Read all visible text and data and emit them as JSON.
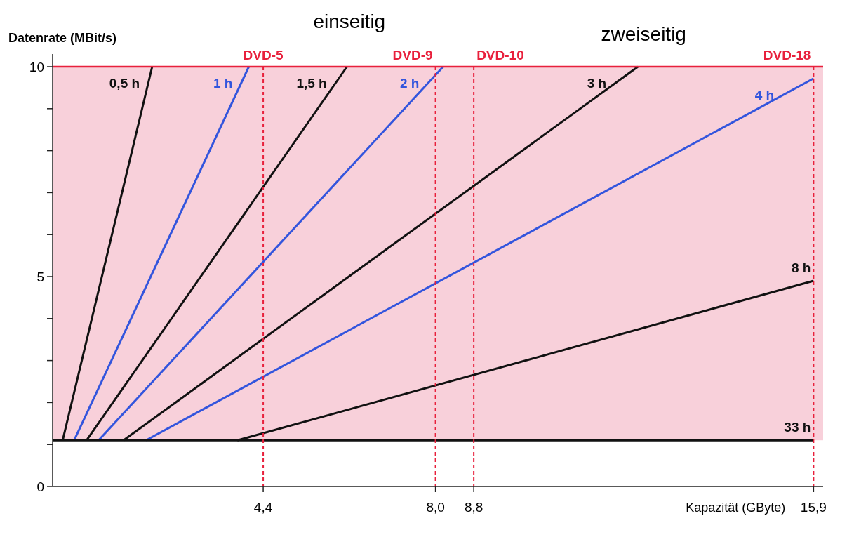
{
  "chart_data": {
    "type": "line",
    "xlabel": "Kapazität (GByte)",
    "ylabel": "Datenrate (MBit/s)",
    "xlim": [
      0,
      16.1
    ],
    "ylim": [
      0,
      10.3
    ],
    "xticks": [
      {
        "value": 4.4,
        "label": "4,4"
      },
      {
        "value": 8.0,
        "label": "8,0"
      },
      {
        "value": 8.8,
        "label": "8,8"
      },
      {
        "value": 15.9,
        "label": "15,9"
      }
    ],
    "yticks": [
      0,
      {
        "value": 1,
        "label": null
      },
      {
        "value": 2,
        "label": null
      },
      {
        "value": 3,
        "label": null
      },
      {
        "value": 4,
        "label": null
      },
      5,
      {
        "value": 6,
        "label": null
      },
      {
        "value": 7,
        "label": null
      },
      {
        "value": 8,
        "label": null
      },
      {
        "value": 9,
        "label": null
      },
      10
    ],
    "grid": false,
    "marker": "none",
    "line_style": "solid",
    "bands": [
      {
        "axis": "y",
        "from": 1.1,
        "to": 10,
        "color": "#f8d0da"
      }
    ],
    "ref_lines": [
      {
        "axis": "y",
        "value": 10,
        "color": "#e8203c",
        "line_style": "solid"
      },
      {
        "axis": "x",
        "value": 4.4,
        "label": "DVD-5",
        "color": "#e8203c",
        "line_style": "dashed"
      },
      {
        "axis": "x",
        "value": 8.0,
        "label": "DVD-9",
        "color": "#e8203c",
        "line_style": "dashed"
      },
      {
        "axis": "x",
        "value": 8.8,
        "label": "DVD-10",
        "color": "#e8203c",
        "line_style": "dashed"
      },
      {
        "axis": "x",
        "value": 15.9,
        "label": "DVD-18",
        "color": "#e8203c",
        "line_style": "dashed"
      }
    ],
    "annotations": [
      "einseitig",
      "zweiseitig"
    ],
    "series": [
      {
        "name": "0,5 h",
        "color": "#111111",
        "x": [
          0.21,
          2.08
        ],
        "values": [
          1.1,
          10
        ]
      },
      {
        "name": "1 h",
        "color": "#3355dd",
        "x": [
          0.45,
          4.1
        ],
        "values": [
          1.1,
          10
        ]
      },
      {
        "name": "1,5 h",
        "color": "#111111",
        "x": [
          0.71,
          6.15
        ],
        "values": [
          1.1,
          10
        ]
      },
      {
        "name": "2 h",
        "color": "#3355dd",
        "x": [
          0.96,
          8.16
        ],
        "values": [
          1.1,
          10
        ]
      },
      {
        "name": "3 h",
        "color": "#111111",
        "x": [
          1.48,
          12.23
        ],
        "values": [
          1.1,
          10
        ]
      },
      {
        "name": "4 h",
        "color": "#3355dd",
        "x": [
          1.95,
          15.9
        ],
        "values": [
          1.1,
          9.72
        ]
      },
      {
        "name": "8 h",
        "color": "#111111",
        "x": [
          3.86,
          15.9
        ],
        "values": [
          1.1,
          4.9
        ]
      },
      {
        "name": "33 h",
        "color": "#111111",
        "x": [
          0,
          15.9
        ],
        "values": [
          1.1,
          1.1
        ]
      }
    ]
  }
}
